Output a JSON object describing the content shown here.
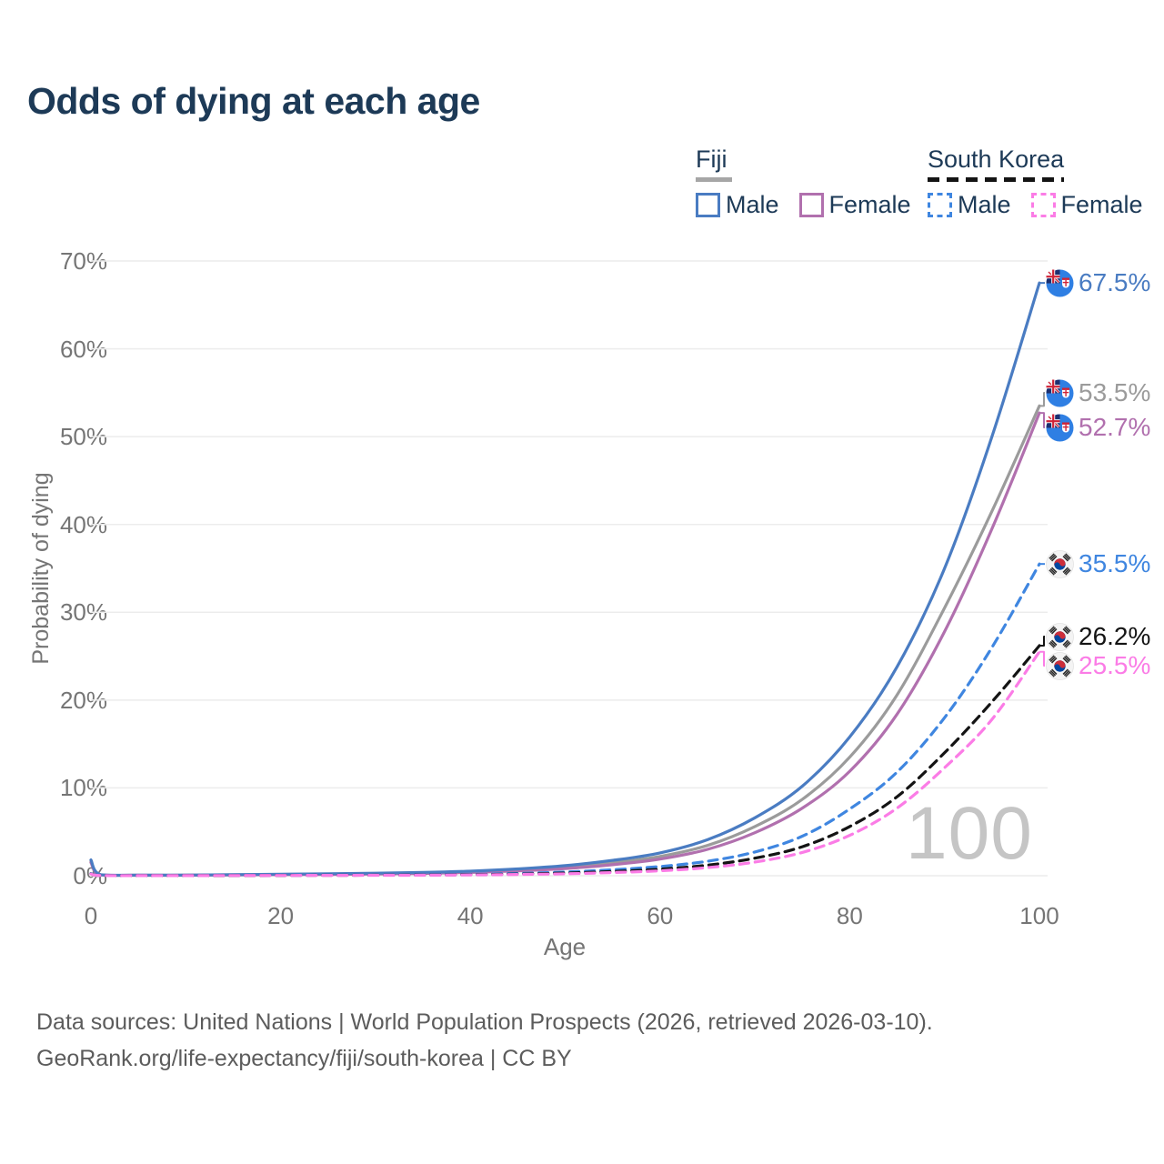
{
  "title": "Odds of dying at each age",
  "legend": {
    "groups": [
      {
        "country": "Fiji",
        "line_style": "solid",
        "underline_color": "#a6a6a6",
        "items": [
          {
            "label": "Male",
            "color": "#4a7cc2"
          },
          {
            "label": "Female",
            "color": "#b170ae"
          }
        ]
      },
      {
        "country": "South Korea",
        "line_style": "dashed",
        "underline_color": "#141414",
        "items": [
          {
            "label": "Male",
            "color": "#3f86e0"
          },
          {
            "label": "Female",
            "color": "#fb7ce6"
          }
        ]
      }
    ]
  },
  "axes": {
    "x": {
      "label": "Age",
      "ticks": [
        0,
        20,
        40,
        60,
        80,
        100
      ],
      "range": [
        0,
        100
      ]
    },
    "y": {
      "label": "Probability of dying",
      "ticks": [
        "0%",
        "10%",
        "20%",
        "30%",
        "40%",
        "50%",
        "60%",
        "70%"
      ],
      "range_percent": [
        0,
        70
      ]
    }
  },
  "watermark": "100",
  "footer": {
    "line1": "Data sources: United Nations | World Population Prospects (2026, retrieved 2026-03-10).",
    "line2": "GeoRank.org/life-expectancy/fiji/south-korea | CC BY"
  },
  "chart_data": {
    "type": "line",
    "title": "Odds of dying at each age",
    "xlabel": "Age",
    "ylabel": "Probability of dying",
    "x_range": [
      0,
      100
    ],
    "ylim_percent": [
      0,
      70
    ],
    "grid": "horizontal",
    "legend_position": "top-right",
    "x": [
      0,
      1,
      5,
      10,
      15,
      20,
      25,
      30,
      35,
      40,
      45,
      50,
      55,
      60,
      65,
      70,
      75,
      80,
      85,
      90,
      95,
      100
    ],
    "series": [
      {
        "name": "Fiji Male",
        "country": "Fiji",
        "sex": "male",
        "color": "#4a7cc2",
        "dashed": false,
        "flag": "fiji-flag",
        "end_label": "67.5%",
        "end_value_percent": 67.5,
        "values_percent": [
          1.8,
          0.12,
          0.06,
          0.07,
          0.12,
          0.18,
          0.23,
          0.29,
          0.38,
          0.52,
          0.78,
          1.15,
          1.75,
          2.6,
          4.1,
          6.6,
          10.2,
          15.8,
          23.8,
          35.0,
          50.0,
          67.5
        ]
      },
      {
        "name": "Fiji",
        "country": "Fiji",
        "sex": "both",
        "color": "#9b9b9b",
        "dashed": false,
        "flag": "fiji-flag",
        "end_label": "53.5%",
        "end_value_percent": 53.5,
        "values_percent": [
          1.65,
          0.11,
          0.05,
          0.06,
          0.1,
          0.15,
          0.19,
          0.24,
          0.31,
          0.44,
          0.65,
          0.97,
          1.47,
          2.2,
          3.45,
          5.6,
          8.7,
          13.5,
          20.6,
          30.5,
          41.5,
          53.5
        ]
      },
      {
        "name": "Fiji Female",
        "country": "Fiji",
        "sex": "female",
        "color": "#b170ae",
        "dashed": false,
        "flag": "fiji-flag",
        "end_label": "52.7%",
        "end_value_percent": 52.7,
        "values_percent": [
          1.5,
          0.1,
          0.05,
          0.05,
          0.08,
          0.12,
          0.15,
          0.2,
          0.26,
          0.37,
          0.55,
          0.82,
          1.25,
          1.9,
          3.0,
          4.9,
          7.7,
          11.9,
          18.4,
          27.8,
          39.5,
          52.7
        ]
      },
      {
        "name": "South Korea Male",
        "country": "South Korea",
        "sex": "male",
        "color": "#3f86e0",
        "dashed": true,
        "flag": "south-korea-flag",
        "end_label": "35.5%",
        "end_value_percent": 35.5,
        "values_percent": [
          0.25,
          0.02,
          0.01,
          0.01,
          0.03,
          0.05,
          0.06,
          0.08,
          0.11,
          0.16,
          0.26,
          0.42,
          0.68,
          1.05,
          1.65,
          2.7,
          4.5,
          7.6,
          11.8,
          18.0,
          26.0,
          35.5
        ]
      },
      {
        "name": "South Korea",
        "country": "South Korea",
        "sex": "both",
        "color": "#141414",
        "dashed": true,
        "flag": "south-korea-flag",
        "end_label": "26.2%",
        "end_value_percent": 26.2,
        "values_percent": [
          0.22,
          0.02,
          0.01,
          0.01,
          0.02,
          0.04,
          0.05,
          0.06,
          0.08,
          0.12,
          0.19,
          0.3,
          0.48,
          0.75,
          1.2,
          2.0,
          3.3,
          5.6,
          9.0,
          14.0,
          19.8,
          26.2
        ]
      },
      {
        "name": "South Korea Female",
        "country": "South Korea",
        "sex": "female",
        "color": "#fb7ce6",
        "dashed": true,
        "flag": "south-korea-flag",
        "end_label": "25.5%",
        "end_value_percent": 25.5,
        "values_percent": [
          0.2,
          0.02,
          0.01,
          0.01,
          0.02,
          0.03,
          0.04,
          0.05,
          0.06,
          0.09,
          0.14,
          0.22,
          0.36,
          0.56,
          0.92,
          1.55,
          2.65,
          4.6,
          7.7,
          12.3,
          17.8,
          25.5
        ]
      }
    ]
  }
}
